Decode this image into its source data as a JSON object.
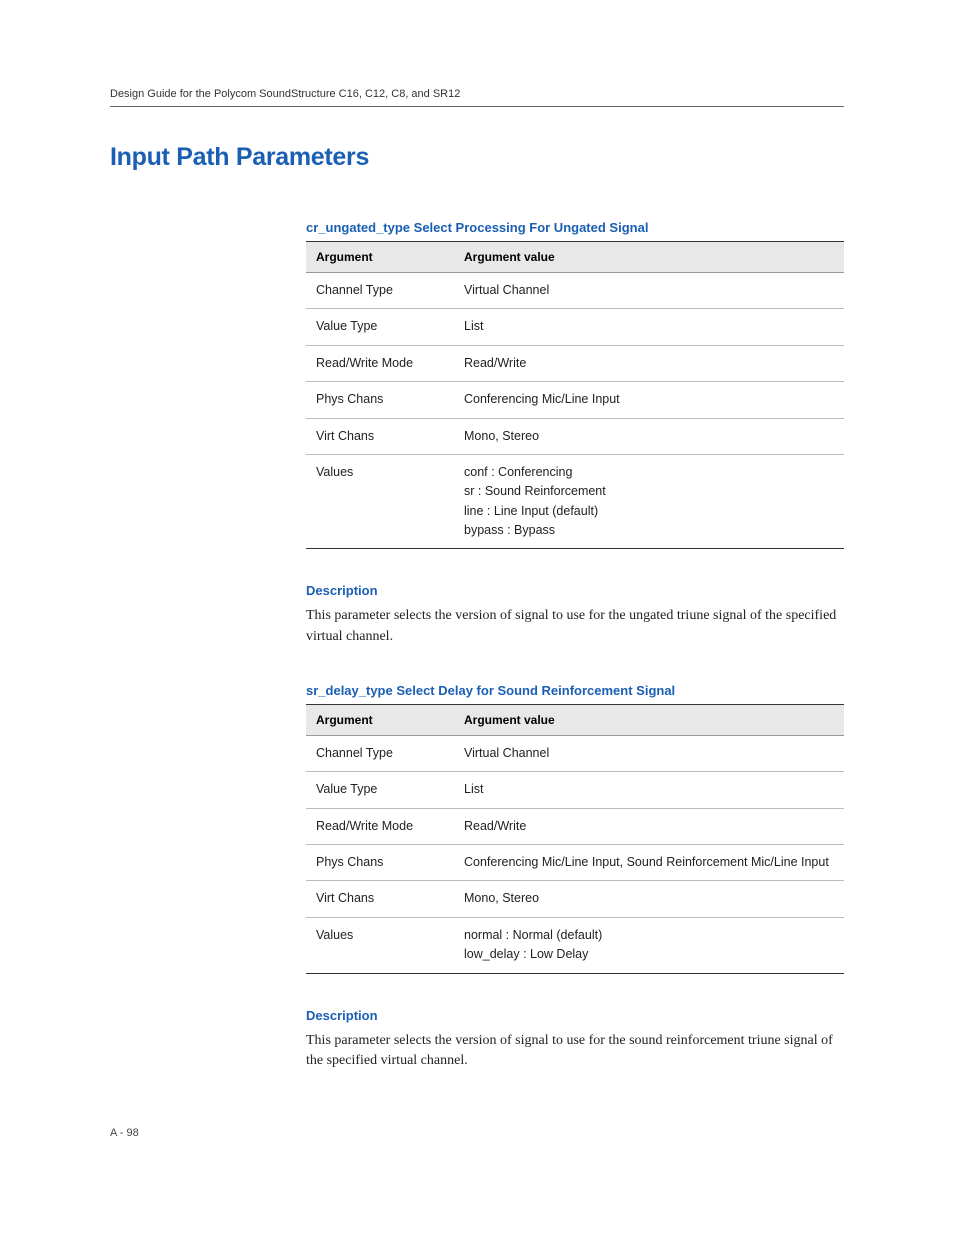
{
  "header": {
    "title": "Design Guide for the Polycom SoundStructure C16, C12, C8, and SR12"
  },
  "main_heading": "Input Path Parameters",
  "accent_color": "#1a5fb4",
  "text_color": "#222222",
  "header_rule_color": "#666666",
  "table_border_color": "#333333",
  "row_border_color": "#bbbbbb",
  "table_header_bg": "#e8e8e8",
  "sections": [
    {
      "caption": "cr_ungated_type Select Processing For Ungated Signal",
      "columns": [
        "Argument",
        "Argument value"
      ],
      "rows": [
        [
          "Channel Type",
          "Virtual Channel"
        ],
        [
          "Value Type",
          "List"
        ],
        [
          "Read/Write Mode",
          "Read/Write"
        ],
        [
          "Phys Chans",
          "Conferencing Mic/Line Input"
        ],
        [
          "Virt Chans",
          "Mono, Stereo"
        ],
        [
          "Values",
          "conf : Conferencing\nsr : Sound Reinforcement\nline : Line Input (default)\nbypass : Bypass"
        ]
      ],
      "desc_heading": "Description",
      "desc_body": "This parameter selects the version of signal to use for the ungated triune signal of the specified virtual channel."
    },
    {
      "caption": "sr_delay_type Select Delay for Sound Reinforcement Signal",
      "columns": [
        "Argument",
        "Argument value"
      ],
      "rows": [
        [
          "Channel Type",
          "Virtual Channel"
        ],
        [
          "Value Type",
          "List"
        ],
        [
          "Read/Write Mode",
          "Read/Write"
        ],
        [
          "Phys Chans",
          "Conferencing Mic/Line Input, Sound Reinforcement Mic/Line Input"
        ],
        [
          "Virt Chans",
          "Mono, Stereo"
        ],
        [
          "Values",
          "normal : Normal (default)\nlow_delay : Low Delay"
        ]
      ],
      "desc_heading": "Description",
      "desc_body": "This parameter selects the version of signal to use for the sound reinforcement triune signal of the specified virtual channel."
    }
  ],
  "page_number": "A - 98"
}
